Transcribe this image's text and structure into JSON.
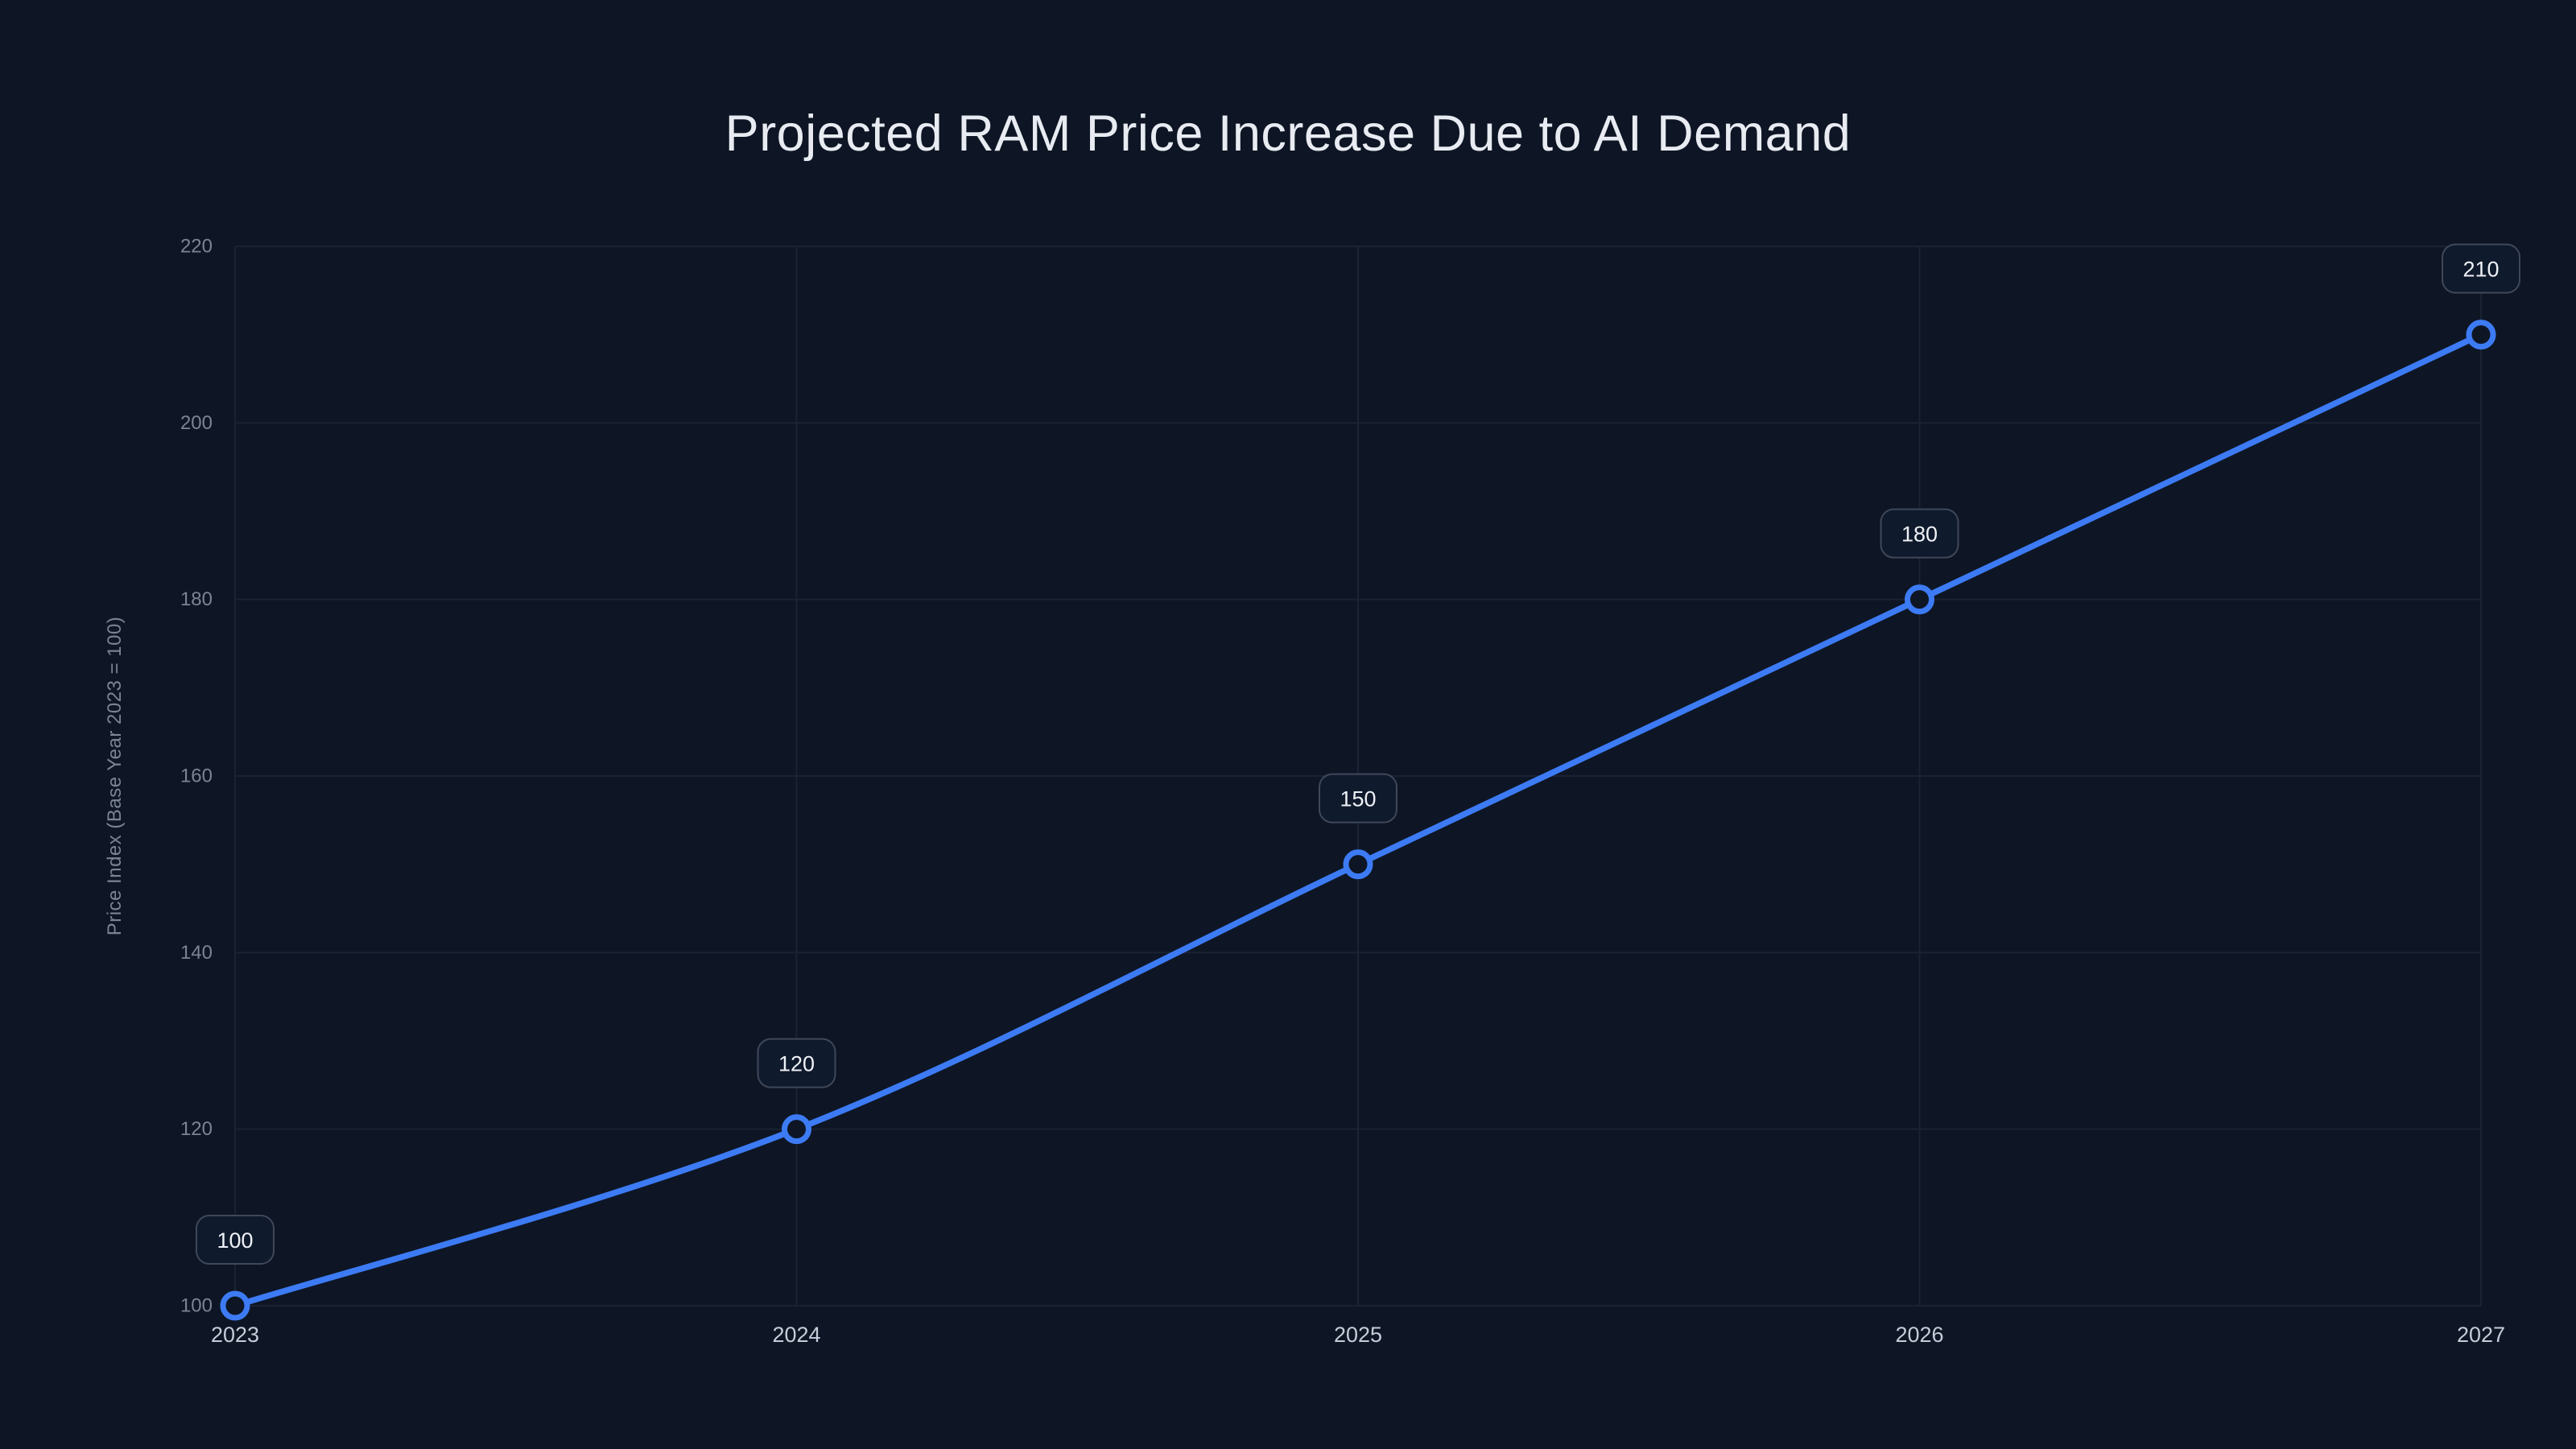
{
  "colors": {
    "background": "#0e1625",
    "line": "#3d7bf5",
    "grid": "#1a2334",
    "title_text": "#e8ecf2",
    "y_tick": "#7b8494",
    "x_tick": "#c6ccd8",
    "label_text": "#eef1f5",
    "label_bg": "#101a2d",
    "label_border": "#3f4859"
  },
  "chart_data": {
    "type": "line",
    "title": "Projected RAM Price Increase Due to AI Demand",
    "xlabel": "",
    "ylabel": "Price Index (Base Year 2023 = 100)",
    "categories": [
      "2023",
      "2024",
      "2025",
      "2026",
      "2027"
    ],
    "series": [
      {
        "name": "Price Index",
        "values": [
          100,
          120,
          150,
          180,
          210
        ]
      }
    ],
    "point_labels": [
      "100",
      "120",
      "150",
      "180",
      "210"
    ],
    "ylim": [
      100,
      220
    ],
    "yticks": [
      100,
      120,
      140,
      160,
      180,
      200,
      220
    ],
    "grid": true,
    "legend_position": "none",
    "marker_style": "hollow-circle",
    "curve": "smooth"
  }
}
